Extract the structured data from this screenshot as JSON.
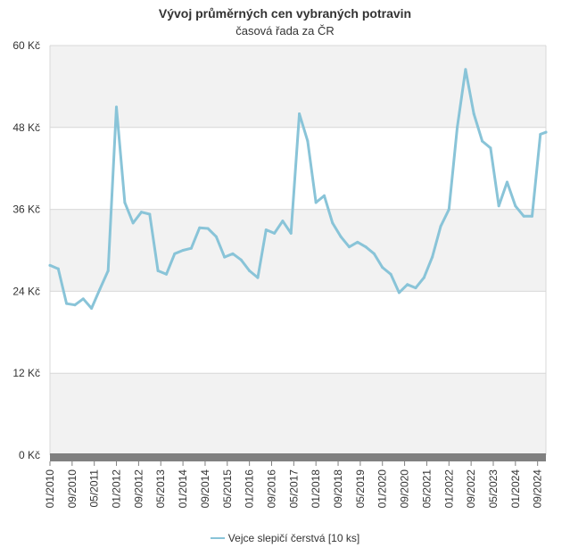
{
  "chart_data": {
    "type": "line",
    "title": "Vývoj průměrných cen vybraných potravin",
    "subtitle": "časová řada za ČR",
    "xlabel": "",
    "ylabel": "",
    "ylim": [
      0,
      60
    ],
    "y_ticks": [
      0,
      12,
      24,
      36,
      48,
      60
    ],
    "y_tick_labels": [
      "0 Kč",
      "12 Kč",
      "24 Kč",
      "36 Kč",
      "48 Kč",
      "60 Kč"
    ],
    "x_tick_labels": [
      "01/2010",
      "09/2010",
      "05/2011",
      "01/2012",
      "09/2012",
      "05/2013",
      "01/2014",
      "09/2014",
      "05/2015",
      "01/2016",
      "09/2016",
      "05/2017",
      "01/2018",
      "09/2018",
      "05/2019",
      "01/2020",
      "09/2020",
      "05/2021",
      "01/2022",
      "09/2022",
      "05/2023",
      "01/2024",
      "09/2024"
    ],
    "x_range": [
      "2010-01",
      "2024-12"
    ],
    "grid": true,
    "legend_position": "bottom",
    "colors": {
      "series": "#89c4d8",
      "band": "#f2f2f2",
      "grid": "#d8d8d8",
      "baseline": "#808080"
    },
    "series": [
      {
        "name": "Vejce slepičí čerstvá [10 ks]",
        "x": [
          "2010-01",
          "2010-04",
          "2010-07",
          "2010-10",
          "2011-01",
          "2011-04",
          "2011-07",
          "2011-10",
          "2012-01",
          "2012-04",
          "2012-07",
          "2012-10",
          "2013-01",
          "2013-04",
          "2013-07",
          "2013-10",
          "2014-01",
          "2014-04",
          "2014-07",
          "2014-10",
          "2015-01",
          "2015-04",
          "2015-07",
          "2015-10",
          "2016-01",
          "2016-04",
          "2016-07",
          "2016-10",
          "2017-01",
          "2017-04",
          "2017-07",
          "2017-10",
          "2018-01",
          "2018-04",
          "2018-07",
          "2018-10",
          "2019-01",
          "2019-04",
          "2019-07",
          "2019-10",
          "2020-01",
          "2020-04",
          "2020-07",
          "2020-10",
          "2021-01",
          "2021-04",
          "2021-07",
          "2021-10",
          "2022-01",
          "2022-04",
          "2022-07",
          "2022-10",
          "2023-01",
          "2023-04",
          "2023-07",
          "2023-10",
          "2024-01",
          "2024-04",
          "2024-07",
          "2024-10",
          "2024-12"
        ],
        "values": [
          27.8,
          27.3,
          22.2,
          22.0,
          22.9,
          21.5,
          24.3,
          27.0,
          51.0,
          37.0,
          34.0,
          35.6,
          35.3,
          27.0,
          26.5,
          29.5,
          30.0,
          30.3,
          33.3,
          33.2,
          32.0,
          29.0,
          29.5,
          28.6,
          27.0,
          26.0,
          33.0,
          32.5,
          34.3,
          32.5,
          50.0,
          46.0,
          37.0,
          38.0,
          34.0,
          32.0,
          30.5,
          31.2,
          30.5,
          29.5,
          27.5,
          26.5,
          23.8,
          25.0,
          24.5,
          26.0,
          29.0,
          33.5,
          36.0,
          48.0,
          56.5,
          50.0,
          46.0,
          45.0,
          36.5,
          40.0,
          36.5,
          35.0,
          35.0,
          47.0,
          47.3
        ]
      }
    ]
  }
}
